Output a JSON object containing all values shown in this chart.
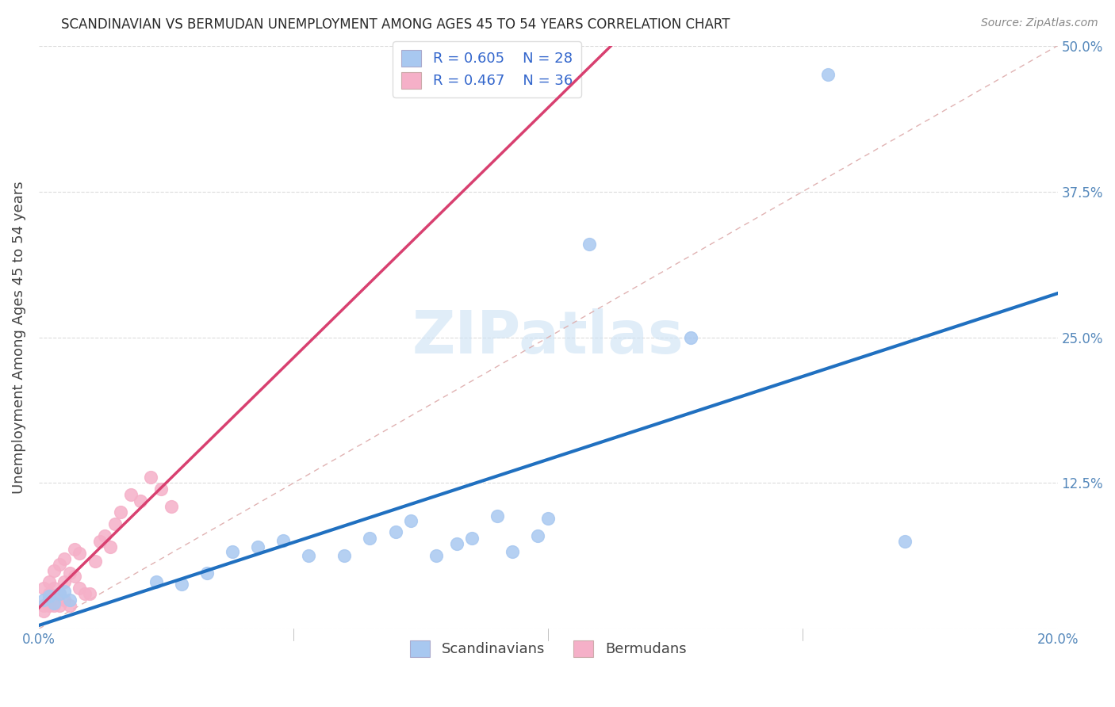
{
  "title": "SCANDINAVIAN VS BERMUDAN UNEMPLOYMENT AMONG AGES 45 TO 54 YEARS CORRELATION CHART",
  "source": "Source: ZipAtlas.com",
  "ylabel": "Unemployment Among Ages 45 to 54 years",
  "xlim": [
    0.0,
    0.2
  ],
  "ylim": [
    0.0,
    0.5
  ],
  "xtick_vals": [
    0.0,
    0.05,
    0.1,
    0.15,
    0.2
  ],
  "ytick_vals": [
    0.0,
    0.125,
    0.25,
    0.375,
    0.5
  ],
  "xtick_labels": [
    "0.0%",
    "",
    "",
    "",
    "20.0%"
  ],
  "ytick_labels": [
    "",
    "12.5%",
    "25.0%",
    "37.5%",
    "50.0%"
  ],
  "scandinavian_fill": "#a8c8f0",
  "bermudan_fill": "#f5b0c8",
  "trend_blue": "#2070c0",
  "trend_pink": "#d84070",
  "diag_color": "#ccbbbb",
  "bg_color": "#ffffff",
  "grid_color": "#cccccc",
  "title_color": "#2a2a2a",
  "tick_color": "#5588bb",
  "label_color": "#444444",
  "legend_text_color": "#3366cc",
  "watermark_color": "#d0e4f5",
  "scan_R": 0.605,
  "scan_N": 28,
  "berm_R": 0.467,
  "berm_N": 36,
  "scandinavians_x": [
    0.001,
    0.002,
    0.003,
    0.004,
    0.005,
    0.006,
    0.023,
    0.028,
    0.033,
    0.038,
    0.043,
    0.048,
    0.053,
    0.06,
    0.065,
    0.07,
    0.073,
    0.078,
    0.082,
    0.085,
    0.09,
    0.093,
    0.098,
    0.1,
    0.108,
    0.128,
    0.155,
    0.17
  ],
  "scandinavians_y": [
    0.025,
    0.028,
    0.022,
    0.03,
    0.032,
    0.025,
    0.04,
    0.038,
    0.048,
    0.066,
    0.07,
    0.076,
    0.063,
    0.063,
    0.078,
    0.083,
    0.093,
    0.063,
    0.073,
    0.078,
    0.097,
    0.066,
    0.08,
    0.095,
    0.33,
    0.25,
    0.475,
    0.075
  ],
  "bermudans_x": [
    0.001,
    0.001,
    0.001,
    0.002,
    0.002,
    0.002,
    0.002,
    0.003,
    0.003,
    0.003,
    0.003,
    0.004,
    0.004,
    0.004,
    0.005,
    0.005,
    0.005,
    0.006,
    0.006,
    0.007,
    0.007,
    0.008,
    0.008,
    0.009,
    0.01,
    0.011,
    0.012,
    0.013,
    0.014,
    0.015,
    0.016,
    0.018,
    0.02,
    0.022,
    0.024,
    0.026
  ],
  "bermudans_y": [
    0.02,
    0.035,
    0.015,
    0.025,
    0.03,
    0.04,
    0.02,
    0.028,
    0.035,
    0.05,
    0.02,
    0.03,
    0.055,
    0.02,
    0.025,
    0.04,
    0.06,
    0.02,
    0.048,
    0.068,
    0.045,
    0.065,
    0.035,
    0.03,
    0.03,
    0.058,
    0.075,
    0.08,
    0.07,
    0.09,
    0.1,
    0.115,
    0.11,
    0.13,
    0.12,
    0.105
  ],
  "marker_size": 130,
  "title_fontsize": 12,
  "tick_fontsize": 12,
  "ylabel_fontsize": 13,
  "legend_fontsize": 13,
  "source_fontsize": 10
}
